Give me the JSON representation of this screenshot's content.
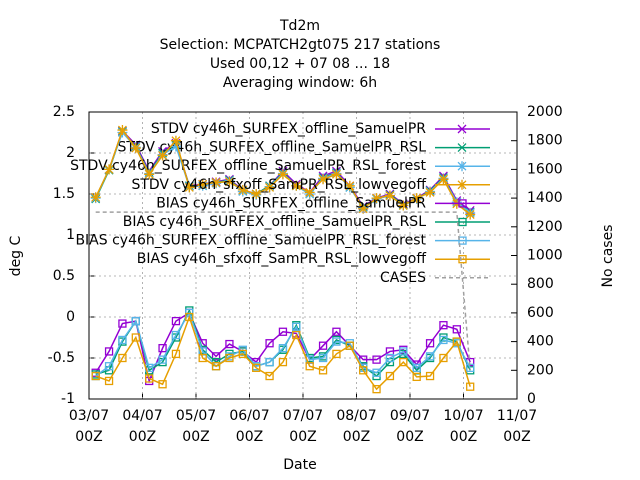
{
  "chart_data": {
    "type": "line",
    "title": [
      "Td2m",
      "Selection: MCPATCH2gt075    217 stations",
      "Used  00,12  + 07 08 ... 18",
      "Averaging window:  6h"
    ],
    "xlabel": "Date",
    "ylabel": "deg C",
    "y2label": "No cases",
    "x": [
      "03/07 03Z",
      "03/07 09Z",
      "03/07 15Z",
      "03/07 21Z",
      "04/07 03Z",
      "04/07 09Z",
      "04/07 15Z",
      "04/07 21Z",
      "05/07 03Z",
      "05/07 09Z",
      "05/07 15Z",
      "05/07 21Z",
      "06/07 03Z",
      "06/07 09Z",
      "06/07 15Z",
      "06/07 21Z",
      "07/07 03Z",
      "07/07 09Z",
      "07/07 15Z",
      "07/07 21Z",
      "08/07 03Z",
      "08/07 09Z",
      "08/07 15Z",
      "08/07 21Z",
      "09/07 03Z",
      "09/07 09Z",
      "09/07 15Z",
      "09/07 21Z",
      "10/07 03Z"
    ],
    "xlim": [
      "03/07 00Z",
      "11/07 00Z"
    ],
    "xticks": [
      "03/07 00Z",
      "04/07 00Z",
      "05/07 00Z",
      "06/07 00Z",
      "07/07 00Z",
      "08/07 00Z",
      "09/07 00Z",
      "10/07 00Z",
      "11/07 00Z"
    ],
    "ylim": [
      -1,
      2.5
    ],
    "yticks": [
      -1,
      -0.5,
      0,
      0.5,
      1,
      1.5,
      2,
      2.5
    ],
    "y2lim": [
      0,
      2000
    ],
    "y2ticks": [
      0,
      200,
      400,
      600,
      800,
      1000,
      1200,
      1400,
      1600,
      1800,
      2000
    ],
    "grid": true,
    "legend": "top-right",
    "series": [
      {
        "name": "STDV cy46h_SURFEX_offline_SamuelPR",
        "color": "#9400d3",
        "marker": "x",
        "values": [
          1.45,
          1.8,
          2.27,
          2.1,
          1.78,
          2.02,
          2.12,
          1.6,
          1.62,
          1.65,
          1.68,
          1.55,
          1.5,
          1.6,
          1.78,
          1.62,
          1.52,
          1.72,
          1.78,
          1.6,
          1.35,
          1.45,
          1.5,
          1.38,
          1.45,
          1.55,
          1.72,
          1.42,
          1.3
        ]
      },
      {
        "name": "STDV cy46h_SURFEX_offline_SamuelPR_RSL",
        "color": "#009e73",
        "marker": "x",
        "values": [
          1.44,
          1.79,
          2.26,
          2.08,
          1.76,
          2.0,
          2.1,
          1.6,
          1.6,
          1.64,
          1.67,
          1.54,
          1.5,
          1.6,
          1.76,
          1.6,
          1.5,
          1.7,
          1.76,
          1.58,
          1.34,
          1.44,
          1.49,
          1.37,
          1.44,
          1.54,
          1.7,
          1.4,
          1.28
        ]
      },
      {
        "name": "STDV cy46h_SURFEX_offline_SamuelPR_RSL_forest",
        "color": "#56b4e9",
        "marker": "star",
        "values": [
          1.45,
          1.8,
          2.25,
          2.07,
          1.75,
          1.98,
          2.08,
          1.59,
          1.6,
          1.63,
          1.66,
          1.53,
          1.49,
          1.59,
          1.75,
          1.6,
          1.5,
          1.69,
          1.75,
          1.58,
          1.33,
          1.44,
          1.48,
          1.36,
          1.44,
          1.53,
          1.69,
          1.4,
          1.27
        ]
      },
      {
        "name": "STDV cy46h_sfxoff_SamPR_RSL_lowvegoff",
        "color": "#e69f00",
        "marker": "star",
        "values": [
          1.46,
          1.8,
          2.28,
          2.06,
          1.74,
          1.97,
          2.15,
          1.58,
          1.62,
          1.64,
          1.65,
          1.55,
          1.5,
          1.58,
          1.74,
          1.6,
          1.52,
          1.68,
          1.74,
          1.6,
          1.32,
          1.45,
          1.48,
          1.36,
          1.45,
          1.52,
          1.68,
          1.38,
          1.25
        ]
      },
      {
        "name": "BIAS cy46h_SURFEX_offline_SamuelPR",
        "color": "#9400d3",
        "marker": "square",
        "values": [
          -0.68,
          -0.42,
          -0.08,
          -0.05,
          -0.78,
          -0.38,
          -0.05,
          0.05,
          -0.32,
          -0.48,
          -0.33,
          -0.42,
          -0.55,
          -0.32,
          -0.18,
          -0.2,
          -0.52,
          -0.35,
          -0.18,
          -0.35,
          -0.52,
          -0.52,
          -0.42,
          -0.4,
          -0.58,
          -0.32,
          -0.1,
          -0.15,
          -0.55
        ]
      },
      {
        "name": "BIAS cy46h_SURFEX_offline_SamuelPR_RSL",
        "color": "#009e73",
        "marker": "square",
        "values": [
          -0.7,
          -0.65,
          -0.3,
          -0.05,
          -0.65,
          -0.55,
          -0.25,
          0.08,
          -0.4,
          -0.55,
          -0.45,
          -0.42,
          -0.6,
          -0.55,
          -0.4,
          -0.1,
          -0.5,
          -0.48,
          -0.28,
          -0.35,
          -0.6,
          -0.72,
          -0.55,
          -0.45,
          -0.65,
          -0.5,
          -0.25,
          -0.3,
          -0.65
        ]
      },
      {
        "name": "BIAS cy46h_SURFEX_offline_SamuelPR_RSL_forest",
        "color": "#56b4e9",
        "marker": "square",
        "values": [
          -0.72,
          -0.6,
          -0.28,
          -0.05,
          -0.62,
          -0.52,
          -0.22,
          0.05,
          -0.42,
          -0.6,
          -0.48,
          -0.4,
          -0.6,
          -0.55,
          -0.38,
          -0.12,
          -0.52,
          -0.5,
          -0.3,
          -0.32,
          -0.62,
          -0.68,
          -0.5,
          -0.42,
          -0.62,
          -0.48,
          -0.28,
          -0.32,
          -0.62
        ]
      },
      {
        "name": "BIAS cy46h_sfxoff_SamPR_RSL_lowvegoff",
        "color": "#e69f00",
        "marker": "square",
        "values": [
          -0.72,
          -0.78,
          -0.5,
          -0.25,
          -0.75,
          -0.82,
          -0.45,
          0.0,
          -0.5,
          -0.6,
          -0.5,
          -0.45,
          -0.62,
          -0.72,
          -0.55,
          -0.22,
          -0.6,
          -0.65,
          -0.45,
          -0.35,
          -0.65,
          -0.88,
          -0.72,
          -0.55,
          -0.73,
          -0.72,
          -0.5,
          -0.3,
          -0.85
        ]
      },
      {
        "name": "CASES",
        "color": "#a0a0a0",
        "marker": "none",
        "dashed": true,
        "axis": "y2",
        "values": [
          1302,
          1302,
          1302,
          1302,
          1302,
          1302,
          1302,
          1302,
          1302,
          1302,
          1302,
          1302,
          1302,
          1302,
          1302,
          1302,
          1302,
          1302,
          1302,
          1302,
          1302,
          1302,
          1302,
          1302,
          1302,
          1302,
          1302,
          1302,
          200
        ]
      }
    ]
  }
}
